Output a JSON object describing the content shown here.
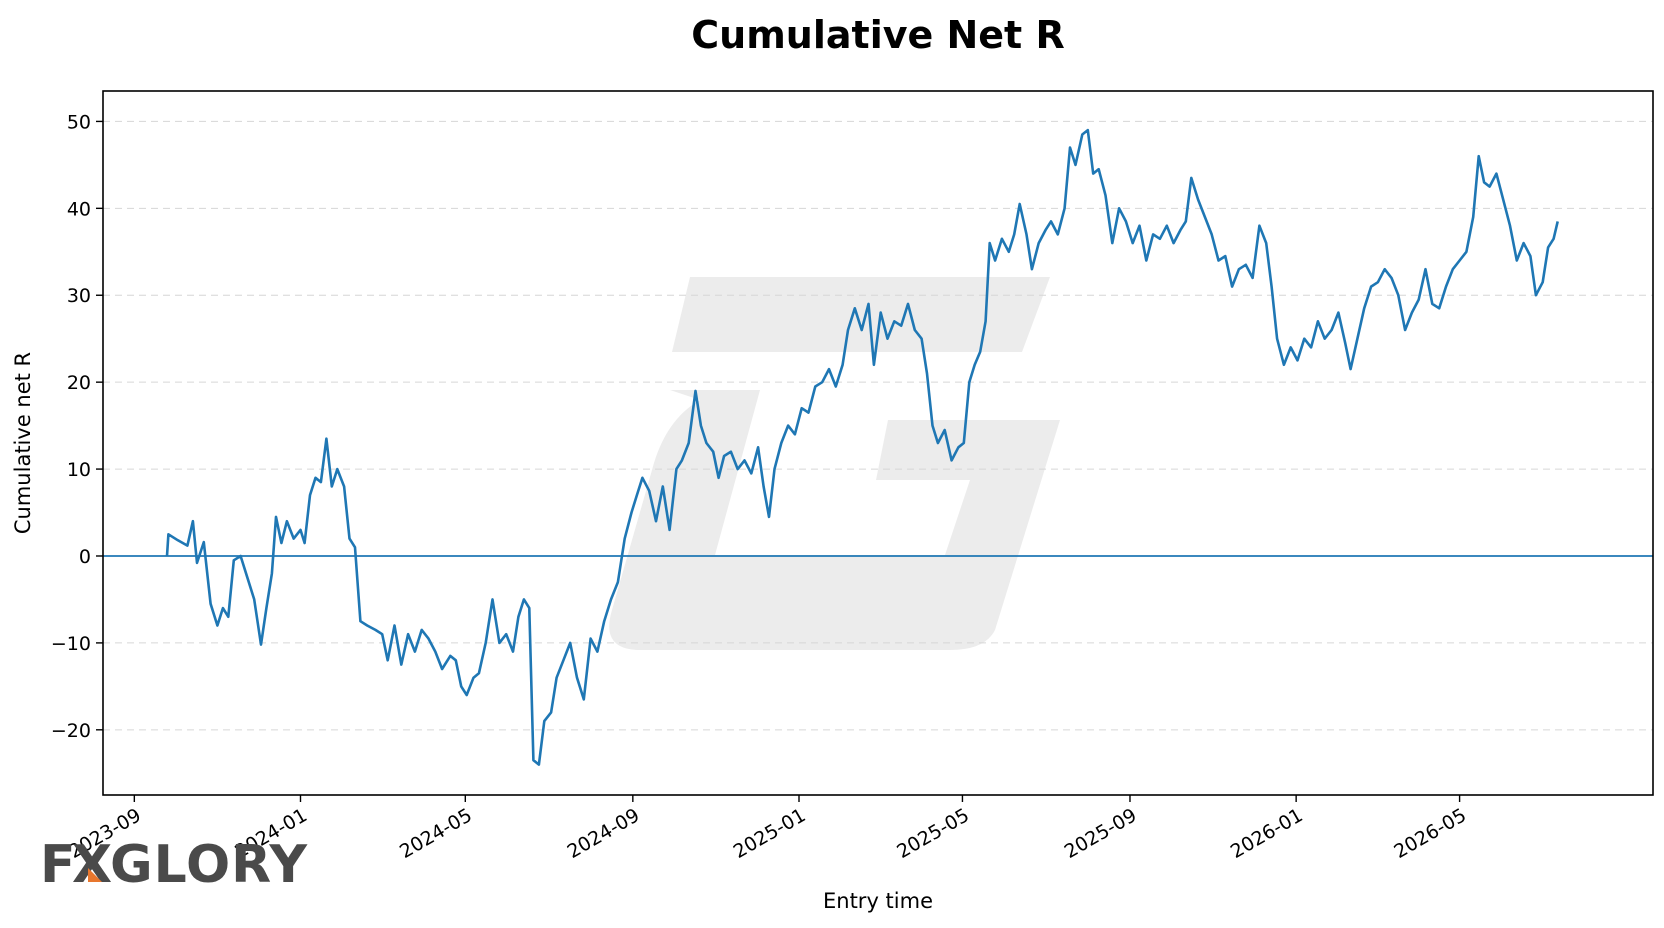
{
  "chart_data": {
    "type": "line",
    "title": "Cumulative Net R",
    "xlabel": "Entry time",
    "ylabel": "Cumulative net R",
    "xlim": [
      "2023-08-09",
      "2026-09-20"
    ],
    "ylim": [
      -27.5,
      53.5
    ],
    "x_ticks": [
      "2023-09",
      "2024-01",
      "2024-05",
      "2024-09",
      "2025-01",
      "2025-05",
      "2025-09",
      "2026-01",
      "2026-05"
    ],
    "y_ticks": [
      -20,
      -10,
      0,
      10,
      20,
      30,
      40,
      50
    ],
    "grid": "horizontal dashed",
    "reference_line": 0,
    "series": [
      {
        "color": "#1f77b4",
        "points": [
          [
            "2023-09-25",
            0
          ],
          [
            "2023-09-26",
            2.5
          ],
          [
            "2023-10-03",
            1.8
          ],
          [
            "2023-10-10",
            1.2
          ],
          [
            "2023-10-14",
            4.0
          ],
          [
            "2023-10-17",
            -0.8
          ],
          [
            "2023-10-22",
            1.6
          ],
          [
            "2023-10-27",
            -5.5
          ],
          [
            "2023-11-01",
            -8.0
          ],
          [
            "2023-11-05",
            -6.0
          ],
          [
            "2023-11-09",
            -7.0
          ],
          [
            "2023-11-13",
            -0.5
          ],
          [
            "2023-11-18",
            0.0
          ],
          [
            "2023-11-23",
            -2.5
          ],
          [
            "2023-11-28",
            -5.0
          ],
          [
            "2023-12-03",
            -10.2
          ],
          [
            "2023-12-07",
            -6.0
          ],
          [
            "2023-12-11",
            -2.0
          ],
          [
            "2023-12-14",
            4.5
          ],
          [
            "2023-12-18",
            1.5
          ],
          [
            "2023-12-22",
            4.0
          ],
          [
            "2023-12-27",
            2.0
          ],
          [
            "2024-01-01",
            3.0
          ],
          [
            "2024-01-04",
            1.5
          ],
          [
            "2024-01-08",
            7.0
          ],
          [
            "2024-01-12",
            9.0
          ],
          [
            "2024-01-16",
            8.5
          ],
          [
            "2024-01-20",
            13.5
          ],
          [
            "2024-01-24",
            8.0
          ],
          [
            "2024-01-28",
            10.0
          ],
          [
            "2024-02-02",
            8.0
          ],
          [
            "2024-02-06",
            2.0
          ],
          [
            "2024-02-10",
            1.0
          ],
          [
            "2024-02-14",
            -7.5
          ],
          [
            "2024-02-19",
            -8.0
          ],
          [
            "2024-02-25",
            -8.5
          ],
          [
            "2024-03-01",
            -9.0
          ],
          [
            "2024-03-05",
            -12.0
          ],
          [
            "2024-03-10",
            -8.0
          ],
          [
            "2024-03-15",
            -12.5
          ],
          [
            "2024-03-20",
            -9.0
          ],
          [
            "2024-03-25",
            -11.0
          ],
          [
            "2024-03-30",
            -8.5
          ],
          [
            "2024-04-04",
            -9.5
          ],
          [
            "2024-04-09",
            -11.0
          ],
          [
            "2024-04-14",
            -13.0
          ],
          [
            "2024-04-20",
            -11.5
          ],
          [
            "2024-04-24",
            -12.0
          ],
          [
            "2024-04-28",
            -15.0
          ],
          [
            "2024-05-02",
            -16.0
          ],
          [
            "2024-05-07",
            -14.0
          ],
          [
            "2024-05-11",
            -13.5
          ],
          [
            "2024-05-16",
            -10.0
          ],
          [
            "2024-05-21",
            -5.0
          ],
          [
            "2024-05-26",
            -10.0
          ],
          [
            "2024-05-31",
            -9.0
          ],
          [
            "2024-06-05",
            -11.0
          ],
          [
            "2024-06-09",
            -7.0
          ],
          [
            "2024-06-13",
            -5.0
          ],
          [
            "2024-06-17",
            -6.0
          ],
          [
            "2024-06-20",
            -23.5
          ],
          [
            "2024-06-24",
            -24.0
          ],
          [
            "2024-06-28",
            -19.0
          ],
          [
            "2024-07-03",
            -18.0
          ],
          [
            "2024-07-07",
            -14.0
          ],
          [
            "2024-07-12",
            -12.0
          ],
          [
            "2024-07-17",
            -10.0
          ],
          [
            "2024-07-22",
            -14.0
          ],
          [
            "2024-07-27",
            -16.5
          ],
          [
            "2024-08-01",
            -9.5
          ],
          [
            "2024-08-06",
            -11.0
          ],
          [
            "2024-08-11",
            -7.5
          ],
          [
            "2024-08-16",
            -5.0
          ],
          [
            "2024-08-21",
            -3.0
          ],
          [
            "2024-08-26",
            2.0
          ],
          [
            "2024-08-31",
            5.0
          ],
          [
            "2024-09-04",
            7.0
          ],
          [
            "2024-09-08",
            9.0
          ],
          [
            "2024-09-13",
            7.5
          ],
          [
            "2024-09-18",
            4.0
          ],
          [
            "2024-09-23",
            8.0
          ],
          [
            "2024-09-28",
            3.0
          ],
          [
            "2024-10-03",
            10.0
          ],
          [
            "2024-10-07",
            11.0
          ],
          [
            "2024-10-12",
            13.0
          ],
          [
            "2024-10-17",
            19.0
          ],
          [
            "2024-10-21",
            15.0
          ],
          [
            "2024-10-25",
            13.0
          ],
          [
            "2024-10-30",
            12.0
          ],
          [
            "2024-11-03",
            9.0
          ],
          [
            "2024-11-07",
            11.5
          ],
          [
            "2024-11-12",
            12.0
          ],
          [
            "2024-11-17",
            10.0
          ],
          [
            "2024-11-22",
            11.0
          ],
          [
            "2024-11-27",
            9.5
          ],
          [
            "2024-12-02",
            12.5
          ],
          [
            "2024-12-06",
            8.0
          ],
          [
            "2024-12-10",
            4.5
          ],
          [
            "2024-12-14",
            10.0
          ],
          [
            "2024-12-19",
            13.0
          ],
          [
            "2024-12-24",
            15.0
          ],
          [
            "2024-12-29",
            14.0
          ],
          [
            "2025-01-03",
            17.0
          ],
          [
            "2025-01-08",
            16.5
          ],
          [
            "2025-01-13",
            19.5
          ],
          [
            "2025-01-18",
            20.0
          ],
          [
            "2025-01-23",
            21.5
          ],
          [
            "2025-01-28",
            19.5
          ],
          [
            "2025-02-02",
            22.0
          ],
          [
            "2025-02-06",
            26.0
          ],
          [
            "2025-02-11",
            28.5
          ],
          [
            "2025-02-16",
            26.0
          ],
          [
            "2025-02-21",
            29.0
          ],
          [
            "2025-02-25",
            22.0
          ],
          [
            "2025-03-02",
            28.0
          ],
          [
            "2025-03-07",
            25.0
          ],
          [
            "2025-03-12",
            27.0
          ],
          [
            "2025-03-17",
            26.5
          ],
          [
            "2025-03-22",
            29.0
          ],
          [
            "2025-03-27",
            26.0
          ],
          [
            "2025-04-01",
            25.0
          ],
          [
            "2025-04-05",
            21.0
          ],
          [
            "2025-04-09",
            15.0
          ],
          [
            "2025-04-13",
            13.0
          ],
          [
            "2025-04-18",
            14.5
          ],
          [
            "2025-04-23",
            11.0
          ],
          [
            "2025-04-28",
            12.5
          ],
          [
            "2025-05-02",
            13.0
          ],
          [
            "2025-05-06",
            20.0
          ],
          [
            "2025-05-10",
            22.0
          ],
          [
            "2025-05-14",
            23.5
          ],
          [
            "2025-05-18",
            27.0
          ],
          [
            "2025-05-21",
            36.0
          ],
          [
            "2025-05-25",
            34.0
          ],
          [
            "2025-05-30",
            36.5
          ],
          [
            "2025-06-04",
            35.0
          ],
          [
            "2025-06-08",
            37.0
          ],
          [
            "2025-06-12",
            40.5
          ],
          [
            "2025-06-17",
            37.0
          ],
          [
            "2025-06-21",
            33.0
          ],
          [
            "2025-06-26",
            36.0
          ],
          [
            "2025-07-01",
            37.5
          ],
          [
            "2025-07-05",
            38.5
          ],
          [
            "2025-07-10",
            37.0
          ],
          [
            "2025-07-15",
            40.0
          ],
          [
            "2025-07-19",
            47.0
          ],
          [
            "2025-07-23",
            45.0
          ],
          [
            "2025-07-28",
            48.5
          ],
          [
            "2025-08-01",
            49.0
          ],
          [
            "2025-08-05",
            44.0
          ],
          [
            "2025-08-09",
            44.5
          ],
          [
            "2025-08-14",
            41.5
          ],
          [
            "2025-08-19",
            36.0
          ],
          [
            "2025-08-24",
            40.0
          ],
          [
            "2025-08-29",
            38.5
          ],
          [
            "2025-09-03",
            36.0
          ],
          [
            "2025-09-08",
            38.0
          ],
          [
            "2025-09-13",
            34.0
          ],
          [
            "2025-09-18",
            37.0
          ],
          [
            "2025-09-23",
            36.5
          ],
          [
            "2025-09-28",
            38.0
          ],
          [
            "2025-10-03",
            36.0
          ],
          [
            "2025-10-08",
            37.5
          ],
          [
            "2025-10-12",
            38.5
          ],
          [
            "2025-10-16",
            43.5
          ],
          [
            "2025-10-21",
            41.0
          ],
          [
            "2025-10-26",
            39.0
          ],
          [
            "2025-10-31",
            37.0
          ],
          [
            "2025-11-05",
            34.0
          ],
          [
            "2025-11-10",
            34.5
          ],
          [
            "2025-11-15",
            31.0
          ],
          [
            "2025-11-20",
            33.0
          ],
          [
            "2025-11-25",
            33.5
          ],
          [
            "2025-11-30",
            32.0
          ],
          [
            "2025-12-05",
            38.0
          ],
          [
            "2025-12-10",
            36.0
          ],
          [
            "2025-12-14",
            31.0
          ],
          [
            "2025-12-18",
            25.0
          ],
          [
            "2025-12-23",
            22.0
          ],
          [
            "2025-12-28",
            24.0
          ],
          [
            "2026-01-02",
            22.5
          ],
          [
            "2026-01-07",
            25.0
          ],
          [
            "2026-01-12",
            24.0
          ],
          [
            "2026-01-17",
            27.0
          ],
          [
            "2026-01-22",
            25.0
          ],
          [
            "2026-01-27",
            26.0
          ],
          [
            "2026-02-01",
            28.0
          ],
          [
            "2026-02-06",
            24.5
          ],
          [
            "2026-02-10",
            21.5
          ],
          [
            "2026-02-15",
            25.0
          ],
          [
            "2026-02-20",
            28.5
          ],
          [
            "2026-02-25",
            31.0
          ],
          [
            "2026-03-02",
            31.5
          ],
          [
            "2026-03-07",
            33.0
          ],
          [
            "2026-03-12",
            32.0
          ],
          [
            "2026-03-17",
            30.0
          ],
          [
            "2026-03-22",
            26.0
          ],
          [
            "2026-03-27",
            28.0
          ],
          [
            "2026-04-01",
            29.5
          ],
          [
            "2026-04-06",
            33.0
          ],
          [
            "2026-04-11",
            29.0
          ],
          [
            "2026-04-16",
            28.5
          ],
          [
            "2026-04-21",
            31.0
          ],
          [
            "2026-04-26",
            33.0
          ],
          [
            "2026-05-01",
            34.0
          ],
          [
            "2026-05-06",
            35.0
          ],
          [
            "2026-05-11",
            39.0
          ],
          [
            "2026-05-15",
            46.0
          ],
          [
            "2026-05-19",
            43.0
          ],
          [
            "2026-05-23",
            42.5
          ],
          [
            "2026-05-28",
            44.0
          ],
          [
            "2026-06-02",
            41.0
          ],
          [
            "2026-06-07",
            38.0
          ],
          [
            "2026-06-12",
            34.0
          ],
          [
            "2026-06-17",
            36.0
          ],
          [
            "2026-06-22",
            34.5
          ],
          [
            "2026-06-26",
            30.0
          ],
          [
            "2026-07-01",
            31.5
          ],
          [
            "2026-07-05",
            35.5
          ],
          [
            "2026-07-09",
            36.5
          ],
          [
            "2026-07-12",
            38.5
          ]
        ]
      }
    ]
  },
  "logo": {
    "text": "FXGLORY",
    "accent_color": "#e8772e"
  }
}
